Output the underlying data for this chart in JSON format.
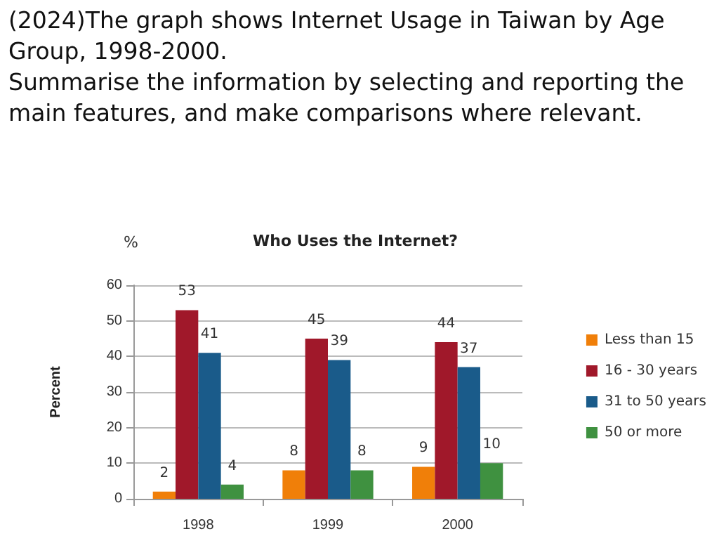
{
  "chart_data": {
    "type": "bar",
    "title": "Who Uses the Internet?",
    "ylabel": "Percent",
    "annotations": [
      "(2024)The graph shows Internet Usage in Taiwan by Age Group, 1998-2000.",
      "Summarise the information by selecting and reporting the main features, and make comparisons where relevant.",
      "%"
    ],
    "categories": [
      "1998",
      "1999",
      "2000"
    ],
    "series": [
      {
        "name": "Less than 15",
        "color": "#f07f09",
        "values": [
          2,
          8,
          9
        ]
      },
      {
        "name": "16 - 30 years",
        "color": "#a0182a",
        "values": [
          53,
          45,
          44
        ]
      },
      {
        "name": "31 to 50 years",
        "color": "#1a5b8a",
        "values": [
          41,
          39,
          37
        ]
      },
      {
        "name": "50 or more",
        "color": "#3f9140",
        "values": [
          4,
          8,
          10
        ]
      }
    ],
    "ylim": [
      0,
      60
    ],
    "yticks": [
      0,
      10,
      20,
      30,
      40,
      50,
      60
    ],
    "grid": "y",
    "legend": "right",
    "data_labels": true
  }
}
